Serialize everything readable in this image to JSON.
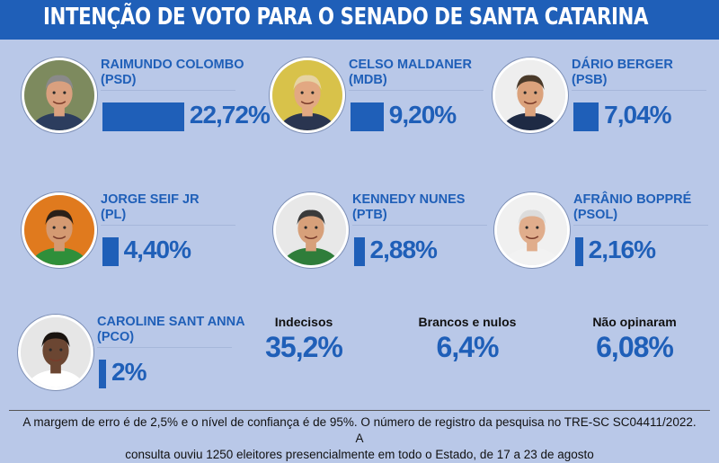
{
  "title": "INTENÇÃO DE VOTO PARA O SENADO DE SANTA CATARINA",
  "chart_data": {
    "type": "bar",
    "title": "INTENÇÃO DE VOTO PARA O SENADO DE SANTA CATARINA",
    "unit": "%",
    "categories": [
      "RAIMUNDO COLOMBO",
      "CELSO MALDANER",
      "DÁRIO BERGER",
      "JORGE SEIF JR",
      "KENNEDY NUNES",
      "AFRÂNIO BOPPRÉ",
      "CAROLINE SANT ANNA"
    ],
    "values": [
      22.72,
      9.2,
      7.04,
      4.4,
      2.88,
      2.16,
      2
    ],
    "candidates": [
      {
        "name": "RAIMUNDO COLOMBO",
        "party": "(PSD)",
        "value": 22.72,
        "label": "22,72%"
      },
      {
        "name": "CELSO MALDANER",
        "party": "(MDB)",
        "value": 9.2,
        "label": "9,20%"
      },
      {
        "name": "DÁRIO BERGER",
        "party": "(PSB)",
        "value": 7.04,
        "label": "7,04%"
      },
      {
        "name": "JORGE SEIF JR",
        "party": "(PL)",
        "value": 4.4,
        "label": "4,40%"
      },
      {
        "name": "KENNEDY NUNES",
        "party": "(PTB)",
        "value": 2.88,
        "label": "2,88%"
      },
      {
        "name": "AFRÂNIO BOPPRÉ",
        "party": "(PSOL)",
        "value": 2.16,
        "label": "2,16%"
      },
      {
        "name": "CAROLINE SANT ANNA",
        "party": "(PCO)",
        "value": 2,
        "label": "2%"
      }
    ],
    "others": [
      {
        "label": "Indecisos",
        "value": 35.2,
        "display": "35,2%"
      },
      {
        "label": "Brancos e nulos",
        "value": 6.4,
        "display": "6,4%"
      },
      {
        "label": "Não opinaram",
        "value": 6.08,
        "display": "6,08%"
      }
    ]
  },
  "footer": {
    "line1": "A margem de erro é de 2,5% e o nível de confiança é de 95%. O número de registro da pesquisa no TRE-SC SC04411/2022. A",
    "line2": "consulta ouviu 1250 eleitores presencialmente em todo o Estado, de 17 a 23 de agosto"
  },
  "colors": {
    "accent": "#1f5fb8",
    "background": "#b9c8e8"
  },
  "photo_styles": [
    {
      "bg": "#7d8a5e",
      "skin": "#d9a07f",
      "hair": "#8a8a8a",
      "shirt": "#2c3d5e"
    },
    {
      "bg": "#d8c24a",
      "skin": "#e2a882",
      "hair": "#e6d3a3",
      "shirt": "#2a3550"
    },
    {
      "bg": "#eeeeee",
      "skin": "#dba27c",
      "hair": "#4a3a2a",
      "shirt": "#1e2a44"
    },
    {
      "bg": "#e07a1e",
      "skin": "#d49a72",
      "hair": "#2a2018",
      "shirt": "#2f8f3a"
    },
    {
      "bg": "#e8e8e8",
      "skin": "#d7a07a",
      "hair": "#3a3a3a",
      "shirt": "#2f7d3a"
    },
    {
      "bg": "#f0f0f0",
      "skin": "#e0ad8c",
      "hair": "#dcdcdc",
      "shirt": "#f2f2f2"
    },
    {
      "bg": "#e6e6e6",
      "skin": "#6b4632",
      "hair": "#1a1410",
      "shirt": "#ffffff"
    }
  ]
}
